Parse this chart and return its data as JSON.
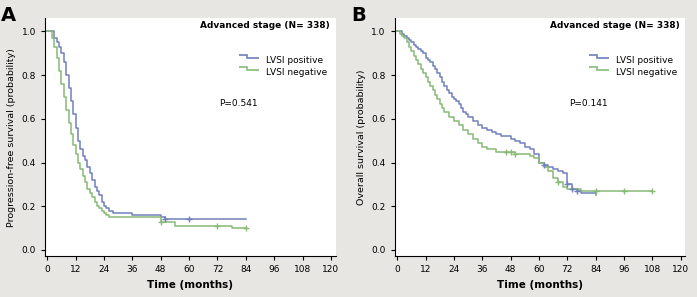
{
  "panel_A": {
    "title": "Advanced stage (N= 338)",
    "ylabel": "Progression-free survival (probability)",
    "xlabel": "Time (months)",
    "p_value": "P=0.541",
    "lvsi_positive": {
      "color": "#7080bb",
      "times": [
        0,
        3,
        4,
        5,
        6,
        7,
        8,
        9,
        10,
        11,
        12,
        13,
        14,
        15,
        16,
        17,
        18,
        19,
        20,
        21,
        22,
        23,
        24,
        25,
        26,
        27,
        28,
        29,
        30,
        36,
        42,
        48,
        50,
        60,
        72,
        84
      ],
      "survival": [
        1.0,
        0.97,
        0.95,
        0.93,
        0.9,
        0.86,
        0.8,
        0.74,
        0.68,
        0.62,
        0.56,
        0.5,
        0.46,
        0.43,
        0.41,
        0.38,
        0.35,
        0.32,
        0.29,
        0.27,
        0.25,
        0.22,
        0.2,
        0.19,
        0.18,
        0.18,
        0.17,
        0.17,
        0.17,
        0.16,
        0.16,
        0.15,
        0.14,
        0.14,
        0.14,
        0.14
      ],
      "censors": [
        50,
        60
      ]
    },
    "lvsi_negative": {
      "color": "#88bb77",
      "times": [
        0,
        2,
        3,
        4,
        5,
        6,
        7,
        8,
        9,
        10,
        11,
        12,
        13,
        14,
        15,
        16,
        17,
        18,
        19,
        20,
        21,
        22,
        23,
        24,
        25,
        26,
        27,
        28,
        29,
        30,
        36,
        42,
        48,
        54,
        60,
        66,
        72,
        78,
        84
      ],
      "survival": [
        1.0,
        0.97,
        0.93,
        0.88,
        0.82,
        0.76,
        0.7,
        0.64,
        0.58,
        0.53,
        0.48,
        0.44,
        0.4,
        0.37,
        0.34,
        0.31,
        0.28,
        0.26,
        0.24,
        0.22,
        0.2,
        0.19,
        0.18,
        0.17,
        0.16,
        0.15,
        0.15,
        0.15,
        0.15,
        0.15,
        0.15,
        0.15,
        0.13,
        0.11,
        0.11,
        0.11,
        0.11,
        0.1,
        0.1
      ],
      "censors": [
        48,
        72,
        84
      ]
    },
    "xticks": [
      0,
      12,
      24,
      36,
      48,
      60,
      72,
      84,
      96,
      108,
      120
    ],
    "yticks": [
      0.0,
      0.2,
      0.4,
      0.6,
      0.8,
      1.0
    ],
    "xlim": [
      -1,
      122
    ],
    "ylim": [
      -0.03,
      1.06
    ]
  },
  "panel_B": {
    "title": "Advanced stage (N= 338)",
    "ylabel": "Overall survival (probability)",
    "xlabel": "Time (months)",
    "p_value": "P=0.141",
    "lvsi_positive": {
      "color": "#7080bb",
      "times": [
        0,
        2,
        3,
        4,
        5,
        6,
        7,
        8,
        9,
        10,
        11,
        12,
        13,
        14,
        15,
        16,
        17,
        18,
        19,
        20,
        21,
        22,
        23,
        24,
        25,
        26,
        27,
        28,
        29,
        30,
        32,
        34,
        36,
        38,
        40,
        42,
        44,
        46,
        48,
        50,
        52,
        54,
        56,
        58,
        60,
        62,
        64,
        66,
        68,
        70,
        72,
        74,
        76,
        78,
        84
      ],
      "survival": [
        1.0,
        0.99,
        0.98,
        0.97,
        0.96,
        0.95,
        0.94,
        0.93,
        0.92,
        0.91,
        0.9,
        0.88,
        0.87,
        0.86,
        0.84,
        0.83,
        0.81,
        0.79,
        0.77,
        0.75,
        0.73,
        0.72,
        0.7,
        0.69,
        0.68,
        0.67,
        0.65,
        0.63,
        0.62,
        0.61,
        0.59,
        0.57,
        0.56,
        0.55,
        0.54,
        0.53,
        0.52,
        0.52,
        0.51,
        0.5,
        0.49,
        0.47,
        0.46,
        0.44,
        0.4,
        0.39,
        0.38,
        0.37,
        0.36,
        0.35,
        0.3,
        0.28,
        0.27,
        0.26,
        0.25
      ],
      "censors": [
        62,
        72,
        74,
        76
      ]
    },
    "lvsi_negative": {
      "color": "#88bb77",
      "times": [
        0,
        1,
        2,
        3,
        4,
        5,
        6,
        7,
        8,
        9,
        10,
        11,
        12,
        13,
        14,
        15,
        16,
        17,
        18,
        19,
        20,
        22,
        24,
        26,
        28,
        30,
        32,
        34,
        36,
        38,
        40,
        42,
        44,
        46,
        48,
        50,
        52,
        54,
        56,
        58,
        60,
        62,
        64,
        66,
        68,
        70,
        72,
        78,
        84,
        96,
        108
      ],
      "survival": [
        1.0,
        0.99,
        0.98,
        0.97,
        0.95,
        0.93,
        0.91,
        0.89,
        0.87,
        0.85,
        0.83,
        0.81,
        0.79,
        0.77,
        0.75,
        0.73,
        0.71,
        0.69,
        0.67,
        0.65,
        0.63,
        0.61,
        0.59,
        0.57,
        0.55,
        0.53,
        0.51,
        0.49,
        0.47,
        0.46,
        0.46,
        0.45,
        0.45,
        0.45,
        0.45,
        0.44,
        0.44,
        0.44,
        0.43,
        0.42,
        0.4,
        0.38,
        0.36,
        0.33,
        0.31,
        0.29,
        0.28,
        0.27,
        0.27,
        0.27,
        0.27
      ],
      "censors": [
        46,
        48,
        50,
        68,
        84,
        96,
        108
      ]
    },
    "xticks": [
      0,
      12,
      24,
      36,
      48,
      60,
      72,
      84,
      96,
      108,
      120
    ],
    "yticks": [
      0.0,
      0.2,
      0.4,
      0.6,
      0.8,
      1.0
    ],
    "xlim": [
      -1,
      122
    ],
    "ylim": [
      -0.03,
      1.06
    ]
  },
  "bg_color": "#e8e6e2",
  "plot_bg_color": "#ffffff",
  "label_A": "A",
  "label_B": "B",
  "legend_lvsi_pos": "LVSI positive",
  "legend_lvsi_neg": "LVSI negative"
}
